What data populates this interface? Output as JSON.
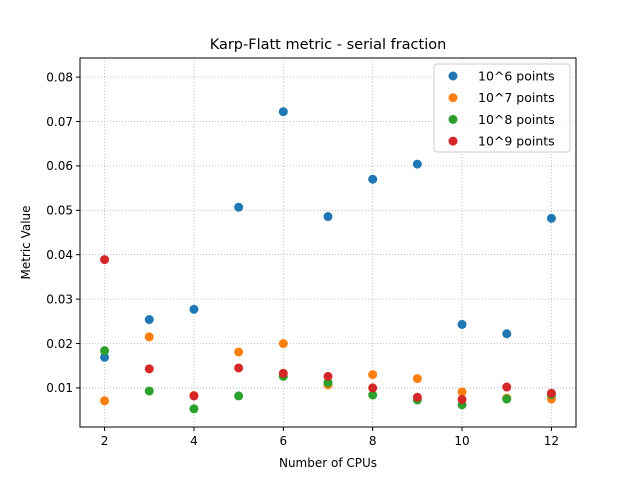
{
  "chart_data": {
    "type": "scatter",
    "title": "Karp-Flatt metric - serial fraction",
    "xlabel": "Number of CPUs",
    "ylabel": "Metric Value",
    "xlim": [
      1.45,
      12.55
    ],
    "ylim": [
      0.0012,
      0.0843
    ],
    "xticks": [
      2,
      4,
      6,
      8,
      10,
      12
    ],
    "yticks": [
      0.01,
      0.02,
      0.03,
      0.04,
      0.05,
      0.06,
      0.07,
      0.08
    ],
    "ytick_labels": [
      "0.01",
      "0.02",
      "0.03",
      "0.04",
      "0.05",
      "0.06",
      "0.07",
      "0.08"
    ],
    "grid": true,
    "legend_position": "top-right",
    "x": [
      2,
      3,
      4,
      5,
      6,
      7,
      8,
      9,
      10,
      11,
      12
    ],
    "series": [
      {
        "name": "10^6 points",
        "color": "#1f77b4",
        "values": [
          0.0169,
          0.0254,
          0.0277,
          0.0507,
          0.0722,
          0.0486,
          0.057,
          0.0604,
          0.0243,
          0.0222,
          0.0482
        ]
      },
      {
        "name": "10^7 points",
        "color": "#ff7f0e",
        "values": [
          0.0071,
          0.0215,
          0.0083,
          0.0181,
          0.02,
          0.0107,
          0.013,
          0.0121,
          0.0091,
          0.0077,
          0.0075
        ]
      },
      {
        "name": "10^8 points",
        "color": "#2ca02c",
        "values": [
          0.0184,
          0.0093,
          0.0053,
          0.0082,
          0.0126,
          0.0112,
          0.0084,
          0.0073,
          0.0062,
          0.0075,
          0.0085
        ]
      },
      {
        "name": "10^9 points",
        "color": "#d62728",
        "values": [
          0.0389,
          0.0143,
          0.0082,
          0.0145,
          0.0133,
          0.0126,
          0.01,
          0.0079,
          0.0074,
          0.0102,
          0.0088
        ]
      }
    ]
  }
}
